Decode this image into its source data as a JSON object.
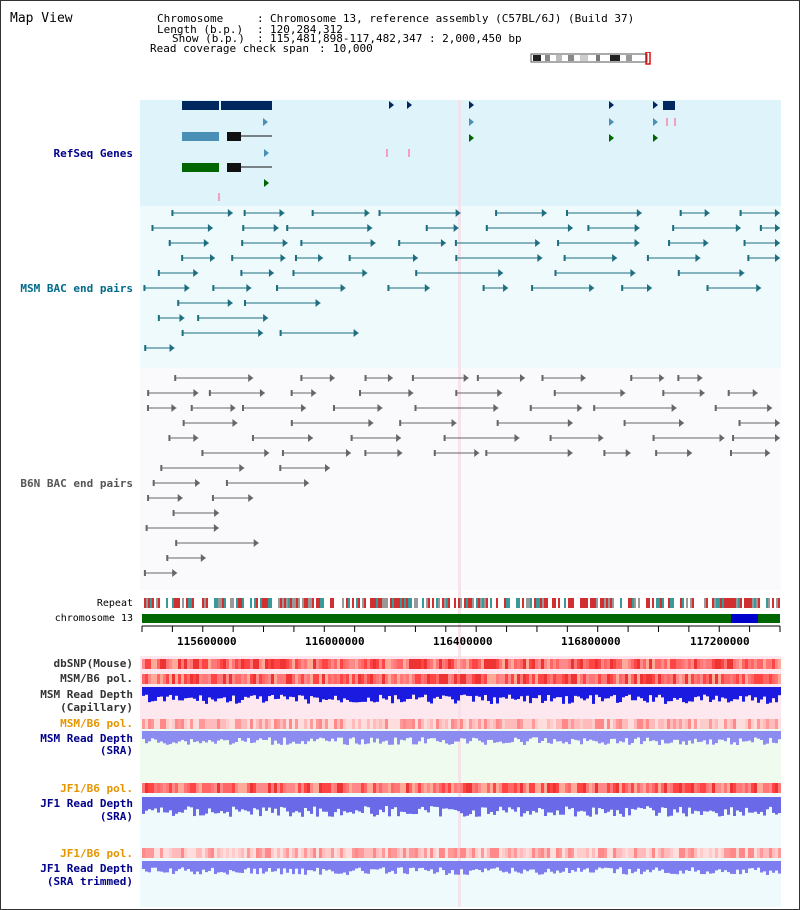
{
  "title": "Map View",
  "header": {
    "chromosome_label": "Chromosome",
    "chromosome_value": "Chromosome 13, reference assembly (C57BL/6J) (Build 37)",
    "length_label": "Length (b.p.)",
    "length_value": "120,284,312",
    "show_label": "Show (b.p.)",
    "show_value": "115,481,898-117,482,347 : 2,000,450 bp",
    "coverage_label": "Read coverage check span",
    "coverage_value": "10,000"
  },
  "tracks": {
    "refseq": "RefSeq Genes",
    "msm_bac": "MSM BAC end pairs",
    "b6n_bac": "B6N BAC end pairs",
    "repeat": "Repeat",
    "chromosome": "chromosome 13",
    "dbsnp": "dbSNP(Mouse)",
    "msm_b6_pol_1": "MSM/B6 pol.",
    "msm_read_depth_cap_1": "MSM Read Depth",
    "msm_read_depth_cap_2": "(Capillary)",
    "msm_b6_pol_2": "MSM/B6 pol.",
    "msm_read_depth_sra_1": "MSM Read Depth",
    "msm_read_depth_sra_2": "(SRA)",
    "jf1_b6_pol_1": "JF1/B6 pol.",
    "jf1_read_depth_sra_1": "JF1 Read Depth",
    "jf1_read_depth_sra_2": "(SRA)",
    "jf1_b6_pol_2": "JF1/B6 pol.",
    "jf1_read_depth_trim_1": "JF1 Read Depth",
    "jf1_read_depth_trim_2": "(SRA trimmed)"
  },
  "axis": {
    "ticks": [
      "115600000",
      "116000000",
      "116400000",
      "116800000",
      "117200000"
    ]
  },
  "colors": {
    "refseq_label": "#00008b",
    "msm_label": "#006b8b",
    "b6n_label": "#555555",
    "pol_orange": "#e69500",
    "depth_blue": "#0000cc",
    "chromosome_green": "#006600"
  }
}
